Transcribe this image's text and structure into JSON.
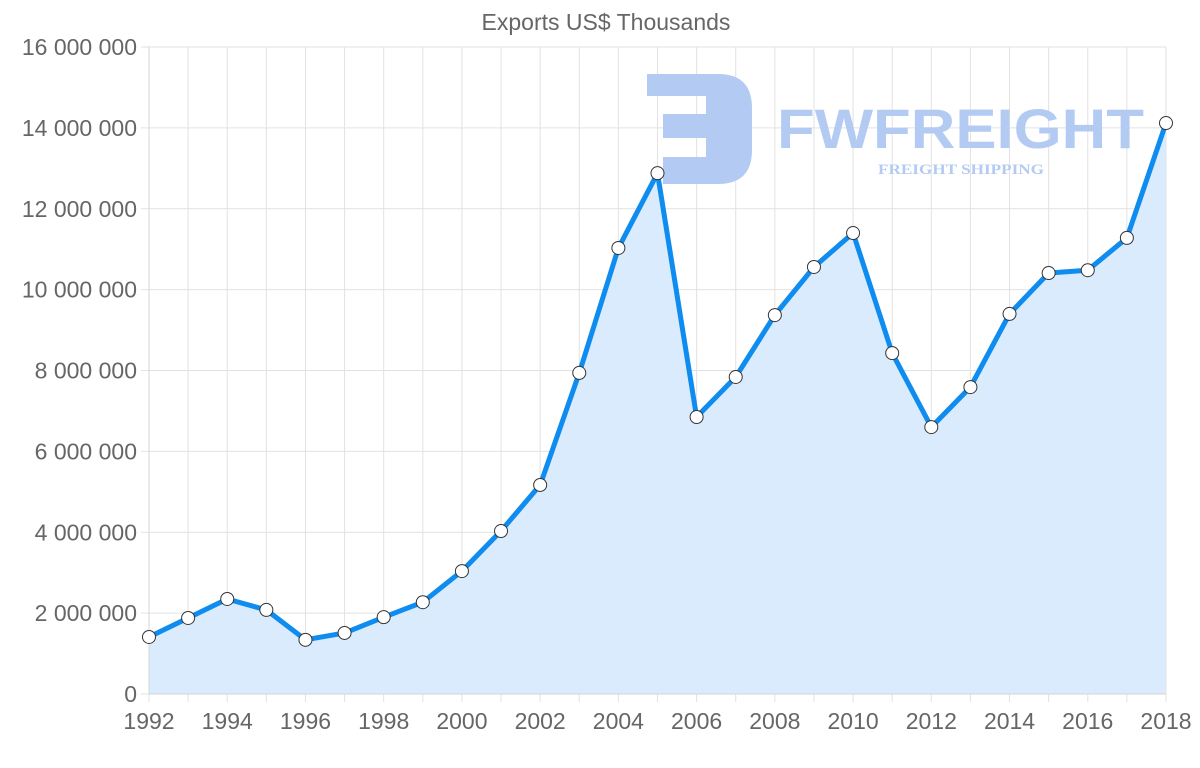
{
  "chart_data": {
    "type": "area",
    "title": "Exports US$ Thousands",
    "xlabel": "",
    "ylabel": "",
    "x": [
      1992,
      1993,
      1994,
      1995,
      1996,
      1997,
      1998,
      1999,
      2000,
      2001,
      2002,
      2003,
      2004,
      2005,
      2006,
      2007,
      2008,
      2009,
      2010,
      2011,
      2012,
      2013,
      2014,
      2015,
      2016,
      2017,
      2018
    ],
    "series": [
      {
        "name": "Exports US$ Thousands",
        "values": [
          1410000,
          1880000,
          2350000,
          2080000,
          1340000,
          1510000,
          1900000,
          2270000,
          3040000,
          4030000,
          5170000,
          7940000,
          11030000,
          12880000,
          6850000,
          7840000,
          9370000,
          10560000,
          11400000,
          8430000,
          6600000,
          7590000,
          9400000,
          10410000,
          10480000,
          11280000,
          14120000
        ]
      }
    ],
    "ylim": [
      0,
      16000000
    ],
    "yticks": [
      0,
      2000000,
      4000000,
      6000000,
      8000000,
      10000000,
      12000000,
      14000000,
      16000000
    ],
    "ytick_labels": [
      "0",
      "2 000 000",
      "4 000 000",
      "6 000 000",
      "8 000 000",
      "10 000 000",
      "12 000 000",
      "14 000 000",
      "16 000 000"
    ],
    "xtick_labels": [
      "1992",
      "1994",
      "1996",
      "1998",
      "2000",
      "2002",
      "2004",
      "2006",
      "2008",
      "2010",
      "2012",
      "2014",
      "2016",
      "2018"
    ],
    "grid": true,
    "legend": "none",
    "colors": {
      "line": "#0f8cef",
      "fill": "#d9ebfc",
      "point_fill": "#ffffff",
      "point_stroke": "#333333"
    }
  },
  "watermark": {
    "brand": "FWFREIGHT",
    "tagline": "FREIGHT SHIPPING",
    "color": "#b3cbf3"
  }
}
